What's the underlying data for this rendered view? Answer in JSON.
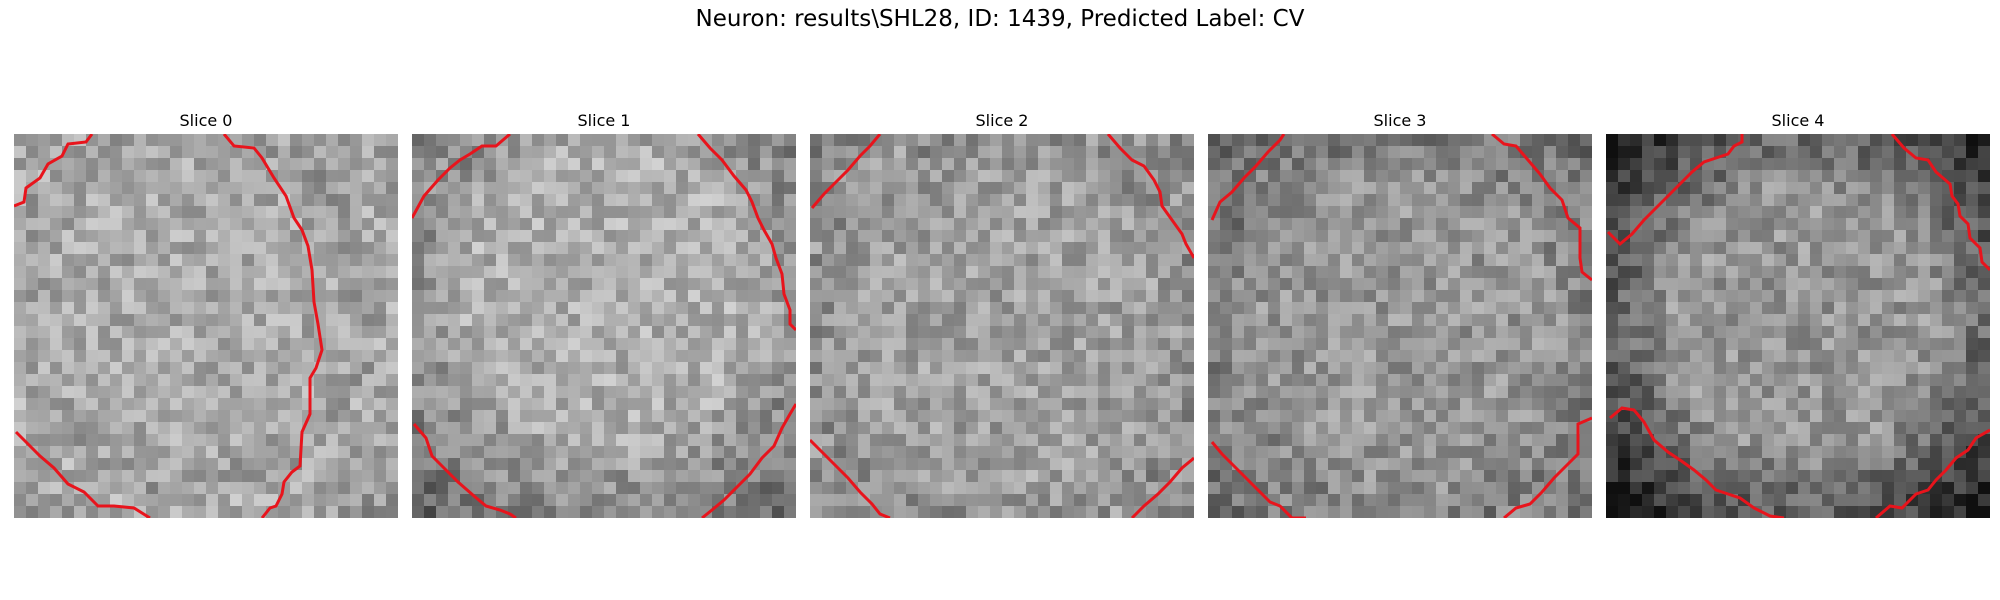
{
  "figure": {
    "title": "Neuron: results\\SHL28, ID: 1439, Predicted Label: CV"
  },
  "slices": [
    {
      "title": "Slice 0"
    },
    {
      "title": "Slice 1"
    },
    {
      "title": "Slice 2"
    },
    {
      "title": "Slice 3"
    },
    {
      "title": "Slice 4"
    }
  ],
  "style": {
    "contour_color": "#e8141c",
    "colormap": "gray"
  }
}
